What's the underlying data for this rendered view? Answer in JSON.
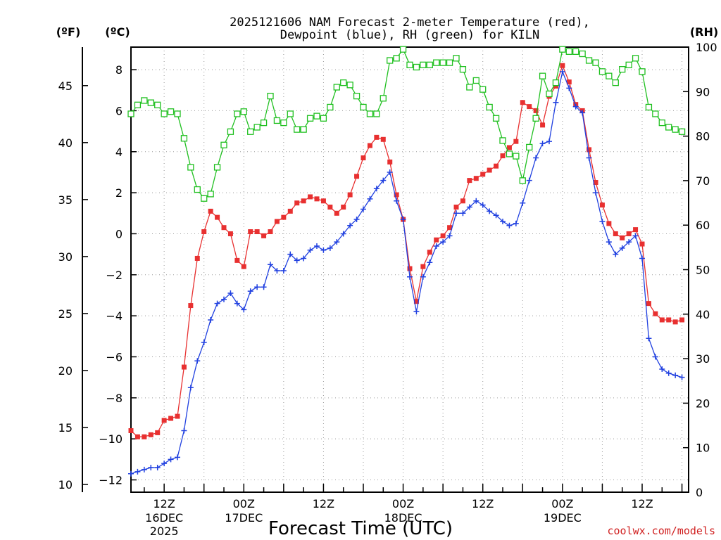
{
  "chart_data": {
    "type": "line",
    "title_line1": "2025121606 NAM Forecast 2-meter Temperature (red),",
    "title_line2": "Dewpoint (blue), RH (green) for KILN",
    "unit_f": "(ºF)",
    "unit_c": "(ºC)",
    "unit_rh": "(RH)",
    "xlabel": "Forecast Time (UTC)",
    "credit": "coolwx.com/models",
    "x_start_hour": 7,
    "x_end_hour": 91,
    "x_ticks": [
      {
        "hour": 12,
        "label": "12Z",
        "label2": "16DEC",
        "label3": "2025"
      },
      {
        "hour": 24,
        "label": "00Z",
        "label2": "17DEC",
        "label3": ""
      },
      {
        "hour": 36,
        "label": "12Z",
        "label2": "",
        "label3": ""
      },
      {
        "hour": 48,
        "label": "00Z",
        "label2": "18DEC",
        "label3": ""
      },
      {
        "hour": 60,
        "label": "12Z",
        "label2": "",
        "label3": ""
      },
      {
        "hour": 72,
        "label": "00Z",
        "label2": "19DEC",
        "label3": ""
      },
      {
        "hour": 84,
        "label": "12Z",
        "label2": "",
        "label3": ""
      }
    ],
    "celsius_range": [
      -12.6,
      9.1
    ],
    "celsius_ticks": [
      {
        "v": 8,
        "label": "8"
      },
      {
        "v": 6,
        "label": "6"
      },
      {
        "v": 4,
        "label": "4"
      },
      {
        "v": 2,
        "label": "2"
      },
      {
        "v": 0,
        "label": "0"
      },
      {
        "v": -2,
        "label": "−2"
      },
      {
        "v": -4,
        "label": "−4"
      },
      {
        "v": -6,
        "label": "−6"
      },
      {
        "v": -8,
        "label": "−8"
      },
      {
        "v": -10,
        "label": "−10"
      },
      {
        "v": -12,
        "label": "−12"
      }
    ],
    "fahrenheit_ticks": [
      {
        "v": 45,
        "label": "45"
      },
      {
        "v": 40,
        "label": "40"
      },
      {
        "v": 35,
        "label": "35"
      },
      {
        "v": 30,
        "label": "30"
      },
      {
        "v": 25,
        "label": "25"
      },
      {
        "v": 20,
        "label": "20"
      },
      {
        "v": 15,
        "label": "15"
      },
      {
        "v": 10,
        "label": "10"
      }
    ],
    "rh_range": [
      0,
      100
    ],
    "rh_ticks": [
      {
        "v": 100,
        "label": "100"
      },
      {
        "v": 90,
        "label": "90"
      },
      {
        "v": 80,
        "label": "80"
      },
      {
        "v": 70,
        "label": "70"
      },
      {
        "v": 60,
        "label": "60"
      },
      {
        "v": 50,
        "label": "50"
      },
      {
        "v": 40,
        "label": "40"
      },
      {
        "v": 30,
        "label": "30"
      },
      {
        "v": 20,
        "label": "20"
      },
      {
        "v": 10,
        "label": "10"
      },
      {
        "v": 0,
        "label": "0"
      }
    ],
    "series": [
      {
        "key": "temperature",
        "axis": "celsius",
        "color": "#e83030",
        "marker": "filled-square",
        "points": [
          [
            7,
            -9.6
          ],
          [
            8,
            -9.9
          ],
          [
            9,
            -9.9
          ],
          [
            10,
            -9.8
          ],
          [
            11,
            -9.7
          ],
          [
            12,
            -9.1
          ],
          [
            13,
            -9.0
          ],
          [
            14,
            -8.9
          ],
          [
            15,
            -6.5
          ],
          [
            16,
            -3.5
          ],
          [
            17,
            -1.2
          ],
          [
            18,
            0.1
          ],
          [
            19,
            1.1
          ],
          [
            20,
            0.8
          ],
          [
            21,
            0.3
          ],
          [
            22,
            0.0
          ],
          [
            23,
            -1.3
          ],
          [
            24,
            -1.6
          ],
          [
            25,
            0.1
          ],
          [
            26,
            0.1
          ],
          [
            27,
            -0.1
          ],
          [
            28,
            0.1
          ],
          [
            29,
            0.6
          ],
          [
            30,
            0.8
          ],
          [
            31,
            1.1
          ],
          [
            32,
            1.5
          ],
          [
            33,
            1.6
          ],
          [
            34,
            1.8
          ],
          [
            35,
            1.7
          ],
          [
            36,
            1.6
          ],
          [
            37,
            1.3
          ],
          [
            38,
            1.0
          ],
          [
            39,
            1.3
          ],
          [
            40,
            1.9
          ],
          [
            41,
            2.8
          ],
          [
            42,
            3.7
          ],
          [
            43,
            4.3
          ],
          [
            44,
            4.7
          ],
          [
            45,
            4.6
          ],
          [
            46,
            3.5
          ],
          [
            47,
            1.9
          ],
          [
            48,
            0.7
          ],
          [
            49,
            -1.7
          ],
          [
            50,
            -3.3
          ],
          [
            51,
            -1.6
          ],
          [
            52,
            -0.9
          ],
          [
            53,
            -0.3
          ],
          [
            54,
            -0.1
          ],
          [
            55,
            0.3
          ],
          [
            56,
            1.3
          ],
          [
            57,
            1.6
          ],
          [
            58,
            2.6
          ],
          [
            59,
            2.7
          ],
          [
            60,
            2.9
          ],
          [
            61,
            3.1
          ],
          [
            62,
            3.3
          ],
          [
            63,
            3.8
          ],
          [
            64,
            4.2
          ],
          [
            65,
            4.5
          ],
          [
            66,
            6.4
          ],
          [
            67,
            6.2
          ],
          [
            68,
            6.0
          ],
          [
            69,
            5.3
          ],
          [
            70,
            6.7
          ],
          [
            71,
            7.2
          ],
          [
            72,
            8.2
          ],
          [
            73,
            7.4
          ],
          [
            74,
            6.3
          ],
          [
            75,
            6.0
          ],
          [
            76,
            4.1
          ],
          [
            77,
            2.5
          ],
          [
            78,
            1.4
          ],
          [
            79,
            0.5
          ],
          [
            80,
            0.0
          ],
          [
            81,
            -0.2
          ],
          [
            82,
            0.0
          ],
          [
            83,
            0.2
          ],
          [
            84,
            -0.5
          ],
          [
            85,
            -3.4
          ],
          [
            86,
            -3.9
          ],
          [
            87,
            -4.2
          ],
          [
            88,
            -4.2
          ],
          [
            89,
            -4.3
          ],
          [
            90,
            -4.2
          ]
        ]
      },
      {
        "key": "dewpoint",
        "axis": "celsius",
        "color": "#2040e0",
        "marker": "plus",
        "points": [
          [
            7,
            -11.7
          ],
          [
            8,
            -11.6
          ],
          [
            9,
            -11.5
          ],
          [
            10,
            -11.4
          ],
          [
            11,
            -11.4
          ],
          [
            12,
            -11.2
          ],
          [
            13,
            -11.0
          ],
          [
            14,
            -10.9
          ],
          [
            15,
            -9.6
          ],
          [
            16,
            -7.5
          ],
          [
            17,
            -6.2
          ],
          [
            18,
            -5.3
          ],
          [
            19,
            -4.2
          ],
          [
            20,
            -3.4
          ],
          [
            21,
            -3.2
          ],
          [
            22,
            -2.9
          ],
          [
            23,
            -3.4
          ],
          [
            24,
            -3.7
          ],
          [
            25,
            -2.8
          ],
          [
            26,
            -2.6
          ],
          [
            27,
            -2.6
          ],
          [
            28,
            -1.5
          ],
          [
            29,
            -1.8
          ],
          [
            30,
            -1.8
          ],
          [
            31,
            -1.0
          ],
          [
            32,
            -1.3
          ],
          [
            33,
            -1.2
          ],
          [
            34,
            -0.8
          ],
          [
            35,
            -0.6
          ],
          [
            36,
            -0.8
          ],
          [
            37,
            -0.7
          ],
          [
            38,
            -0.4
          ],
          [
            39,
            0.0
          ],
          [
            40,
            0.4
          ],
          [
            41,
            0.7
          ],
          [
            42,
            1.2
          ],
          [
            43,
            1.7
          ],
          [
            44,
            2.2
          ],
          [
            45,
            2.6
          ],
          [
            46,
            3.0
          ],
          [
            47,
            1.6
          ],
          [
            48,
            0.7
          ],
          [
            49,
            -2.1
          ],
          [
            50,
            -3.8
          ],
          [
            51,
            -2.1
          ],
          [
            52,
            -1.4
          ],
          [
            53,
            -0.6
          ],
          [
            54,
            -0.4
          ],
          [
            55,
            -0.1
          ],
          [
            56,
            1.0
          ],
          [
            57,
            1.0
          ],
          [
            58,
            1.3
          ],
          [
            59,
            1.6
          ],
          [
            60,
            1.4
          ],
          [
            61,
            1.1
          ],
          [
            62,
            0.9
          ],
          [
            63,
            0.6
          ],
          [
            64,
            0.4
          ],
          [
            65,
            0.5
          ],
          [
            66,
            1.5
          ],
          [
            67,
            2.6
          ],
          [
            68,
            3.7
          ],
          [
            69,
            4.4
          ],
          [
            70,
            4.5
          ],
          [
            71,
            6.4
          ],
          [
            72,
            7.9
          ],
          [
            73,
            7.1
          ],
          [
            74,
            6.2
          ],
          [
            75,
            5.9
          ],
          [
            76,
            3.7
          ],
          [
            77,
            2.0
          ],
          [
            78,
            0.6
          ],
          [
            79,
            -0.4
          ],
          [
            80,
            -1.0
          ],
          [
            81,
            -0.7
          ],
          [
            82,
            -0.4
          ],
          [
            83,
            -0.1
          ],
          [
            84,
            -1.2
          ],
          [
            85,
            -5.1
          ],
          [
            86,
            -6.0
          ],
          [
            87,
            -6.6
          ],
          [
            88,
            -6.8
          ],
          [
            89,
            -6.9
          ],
          [
            90,
            -7.0
          ]
        ]
      },
      {
        "key": "rh",
        "axis": "rh",
        "color": "#20c020",
        "marker": "open-square",
        "points": [
          [
            7,
            85
          ],
          [
            8,
            87
          ],
          [
            9,
            88
          ],
          [
            10,
            87.5
          ],
          [
            11,
            87
          ],
          [
            12,
            85
          ],
          [
            13,
            85.5
          ],
          [
            14,
            85
          ],
          [
            15,
            79.5
          ],
          [
            16,
            73
          ],
          [
            17,
            68
          ],
          [
            18,
            66
          ],
          [
            19,
            67
          ],
          [
            20,
            73
          ],
          [
            21,
            78
          ],
          [
            22,
            81
          ],
          [
            23,
            85
          ],
          [
            24,
            85.5
          ],
          [
            25,
            81
          ],
          [
            26,
            82
          ],
          [
            27,
            83
          ],
          [
            28,
            89
          ],
          [
            29,
            83.5
          ],
          [
            30,
            83
          ],
          [
            31,
            85
          ],
          [
            32,
            81.5
          ],
          [
            33,
            81.5
          ],
          [
            34,
            84
          ],
          [
            35,
            84.5
          ],
          [
            36,
            84
          ],
          [
            37,
            86.5
          ],
          [
            38,
            91
          ],
          [
            39,
            92
          ],
          [
            40,
            91.5
          ],
          [
            41,
            89
          ],
          [
            42,
            86.5
          ],
          [
            43,
            85
          ],
          [
            44,
            85
          ],
          [
            45,
            88.5
          ],
          [
            46,
            97
          ],
          [
            47,
            97.5
          ],
          [
            48,
            99.5
          ],
          [
            49,
            96
          ],
          [
            50,
            95.5
          ],
          [
            51,
            96
          ],
          [
            52,
            96
          ],
          [
            53,
            96.5
          ],
          [
            54,
            96.5
          ],
          [
            55,
            96.5
          ],
          [
            56,
            97.5
          ],
          [
            57,
            95
          ],
          [
            58,
            91
          ],
          [
            59,
            92.5
          ],
          [
            60,
            90.5
          ],
          [
            61,
            86.5
          ],
          [
            62,
            84
          ],
          [
            63,
            79
          ],
          [
            64,
            76
          ],
          [
            65,
            75.5
          ],
          [
            66,
            70
          ],
          [
            67,
            77.5
          ],
          [
            68,
            84
          ],
          [
            69,
            93.5
          ],
          [
            70,
            89.5
          ],
          [
            71,
            92
          ],
          [
            72,
            99.5
          ],
          [
            73,
            99
          ],
          [
            74,
            99
          ],
          [
            75,
            98.5
          ],
          [
            76,
            97
          ],
          [
            77,
            96.5
          ],
          [
            78,
            94.5
          ],
          [
            79,
            93.5
          ],
          [
            80,
            92
          ],
          [
            81,
            95
          ],
          [
            82,
            96
          ],
          [
            83,
            97.5
          ],
          [
            84,
            94.5
          ],
          [
            85,
            86.5
          ],
          [
            86,
            85
          ],
          [
            87,
            83
          ],
          [
            88,
            82
          ],
          [
            89,
            81.5
          ],
          [
            90,
            81
          ]
        ]
      }
    ]
  }
}
